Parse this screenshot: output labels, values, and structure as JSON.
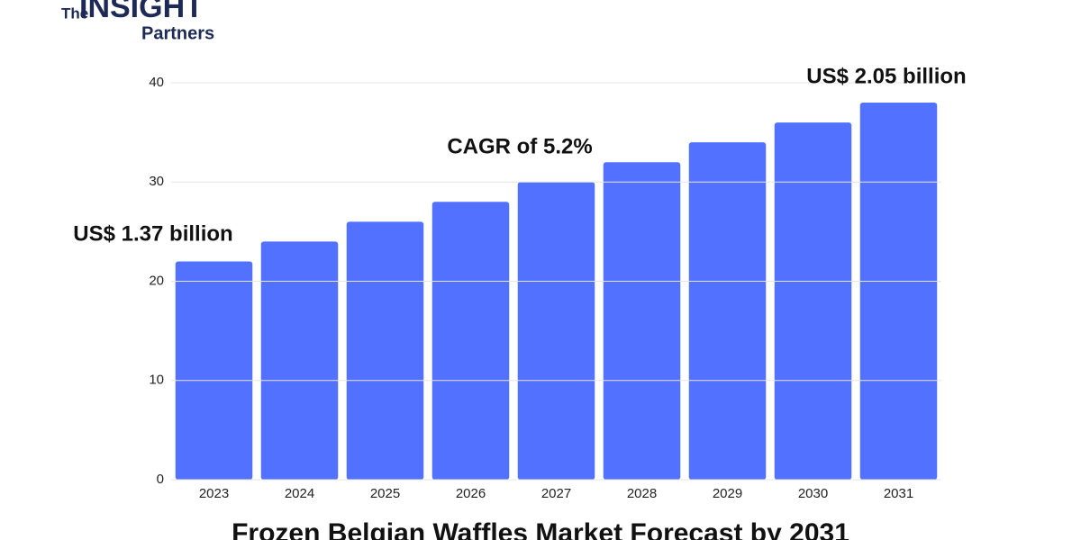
{
  "logo": {
    "prefix": "The",
    "name": "INSIGHT",
    "suffix": "Partners"
  },
  "chart_data": {
    "type": "bar",
    "title": "Frozen Belgian Waffles Market Forecast by 2031",
    "categories": [
      "2023",
      "2024",
      "2025",
      "2026",
      "2027",
      "2028",
      "2029",
      "2030",
      "2031"
    ],
    "values": [
      22,
      24,
      26,
      28,
      30,
      32,
      34,
      36,
      38
    ],
    "color": "#5271ff",
    "ylim": [
      0,
      40
    ],
    "yticks": [
      0,
      10,
      20,
      30,
      40
    ],
    "grid": true,
    "annotations": [
      "US$ 1.37 billion",
      "CAGR of 5.2%",
      "US$ 2.05 billion"
    ]
  }
}
